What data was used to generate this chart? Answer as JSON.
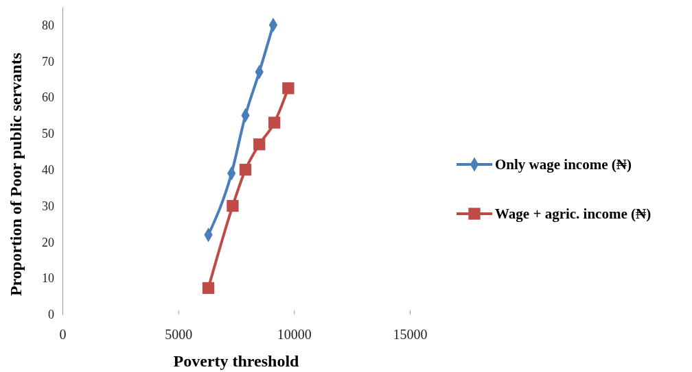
{
  "chart_data": {
    "type": "line",
    "xlabel": "Poverty threshold",
    "ylabel": "Proportion of Poor public servants",
    "xlim": [
      0,
      15000
    ],
    "xticks": [
      0,
      5000,
      10000,
      15000
    ],
    "ylim": [
      0,
      85
    ],
    "yticks": [
      0,
      10,
      20,
      30,
      40,
      50,
      60,
      70,
      80
    ],
    "grid": false,
    "legend": "right",
    "line_style": "solid",
    "series": [
      {
        "name": "Only wage income (₦)",
        "color": "#4a7ebb",
        "marker": "diamond",
        "x": [
          6300,
          7300,
          7900,
          8500,
          9100
        ],
        "values": [
          22,
          39,
          55,
          67,
          80
        ]
      },
      {
        "name": "Wage + agric. income (₦)",
        "color": "#be4b48",
        "marker": "square",
        "x": [
          6300,
          7350,
          7900,
          8500,
          9150,
          9750
        ],
        "values": [
          7.3,
          30,
          40,
          47,
          53,
          62.5
        ]
      }
    ]
  }
}
